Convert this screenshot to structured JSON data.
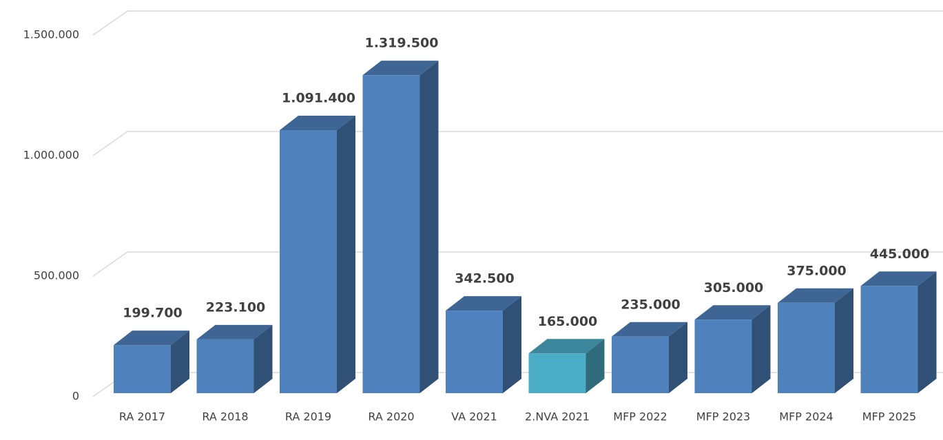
{
  "chart_data": {
    "type": "bar3d",
    "categories": [
      "RA 2017",
      "RA 2018",
      "RA 2019",
      "RA 2020",
      "VA 2021",
      "2.NVA 2021",
      "MFP 2022",
      "MFP 2023",
      "MFP 2024",
      "MFP 2025"
    ],
    "values": [
      199700,
      223100,
      1091400,
      1319500,
      342500,
      165000,
      235000,
      305000,
      375000,
      445000
    ],
    "value_labels": [
      "199.700",
      "223.100",
      "1.091.400",
      "1.319.500",
      "342.500",
      "165.000",
      "235.000",
      "305.000",
      "375.000",
      "445.000"
    ],
    "colors": [
      "#4f81bd",
      "#4f81bd",
      "#4f81bd",
      "#4f81bd",
      "#4f81bd",
      "#4bacc6",
      "#4f81bd",
      "#4f81bd",
      "#4f81bd",
      "#4f81bd"
    ],
    "ylim": [
      0,
      1500000
    ],
    "yticks": [
      0,
      {
        "value": 500000,
        "label": "500.000"
      },
      {
        "value": 1000000,
        "label": "1.000.000"
      },
      {
        "value": 1500000,
        "label": "1.500.000"
      }
    ],
    "grid": true
  }
}
